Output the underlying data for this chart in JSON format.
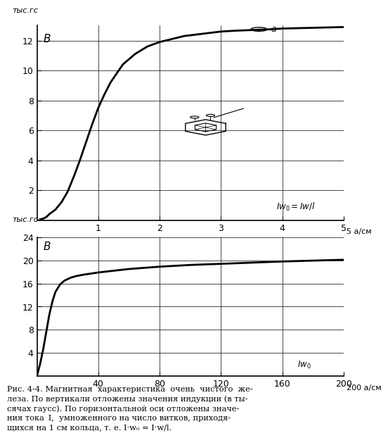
{
  "top_chart": {
    "ylabel": "тыс.гс",
    "xlabel": "Iw₀=Iw/l",
    "xlabel_unit": "5 а/см",
    "xlim": [
      0,
      5
    ],
    "ylim": [
      0,
      13
    ],
    "xticks": [
      1,
      2,
      3,
      4,
      5
    ],
    "yticks": [
      2,
      4,
      6,
      8,
      10,
      12
    ],
    "x_data": [
      0.05,
      0.1,
      0.15,
      0.2,
      0.3,
      0.4,
      0.5,
      0.6,
      0.7,
      0.8,
      0.9,
      1.0,
      1.1,
      1.2,
      1.4,
      1.6,
      1.8,
      2.0,
      2.2,
      2.4,
      2.6,
      2.8,
      3.0,
      3.2,
      3.5,
      3.8,
      4.0,
      4.5,
      5.0
    ],
    "y_data": [
      0.05,
      0.1,
      0.2,
      0.4,
      0.7,
      1.2,
      1.9,
      2.9,
      4.0,
      5.2,
      6.4,
      7.5,
      8.4,
      9.2,
      10.4,
      11.1,
      11.6,
      11.9,
      12.1,
      12.3,
      12.4,
      12.5,
      12.6,
      12.65,
      12.7,
      12.75,
      12.8,
      12.85,
      12.9
    ]
  },
  "bottom_chart": {
    "ylabel": "тыс.гс",
    "xlabel": "Iw₀",
    "xlabel_unit": "200 а/см",
    "xlim": [
      0,
      200
    ],
    "ylim": [
      0,
      24
    ],
    "xticks": [
      40,
      80,
      120,
      160,
      200
    ],
    "yticks": [
      4,
      8,
      12,
      16,
      20,
      24
    ],
    "x_data": [
      0,
      2,
      4,
      6,
      8,
      10,
      12,
      15,
      18,
      22,
      26,
      30,
      35,
      40,
      50,
      60,
      70,
      80,
      100,
      120,
      140,
      160,
      180,
      200
    ],
    "y_data": [
      0,
      2.0,
      4.5,
      7.5,
      10.5,
      12.8,
      14.5,
      15.8,
      16.5,
      17.0,
      17.3,
      17.5,
      17.7,
      17.9,
      18.2,
      18.5,
      18.7,
      18.9,
      19.2,
      19.4,
      19.6,
      19.8,
      19.95,
      20.1
    ]
  },
  "line_color": "#000000",
  "line_width": 2.0,
  "bg_color": "#ffffff",
  "grid_color": "#000000"
}
